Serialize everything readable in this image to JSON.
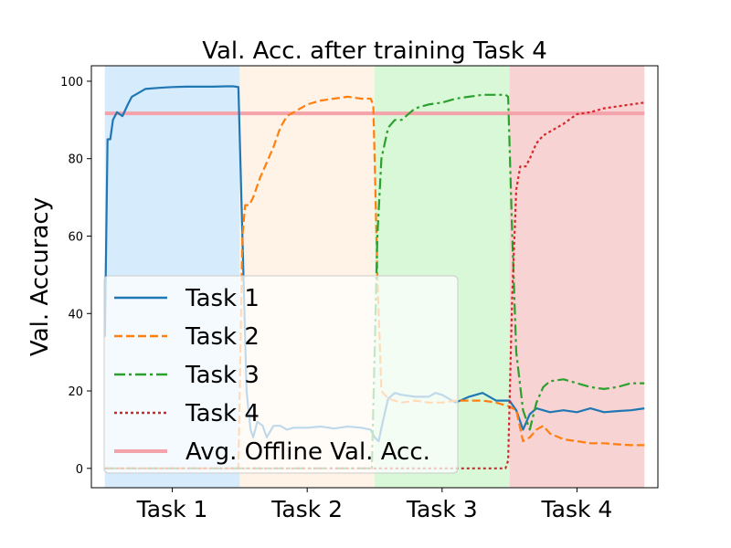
{
  "chart_data": {
    "type": "line",
    "title": "Val. Acc. after training Task 4",
    "xlabel": "",
    "ylabel": "Val. Accuracy",
    "ylim": [
      -5,
      104
    ],
    "xlim": [
      -0.1,
      4.1
    ],
    "yticks": [
      0,
      20,
      40,
      60,
      80,
      100
    ],
    "grid": false,
    "legend_position": "lower-left",
    "phases": [
      {
        "label": "Task 1",
        "start": 0,
        "end": 1,
        "color": "#d6ebfb"
      },
      {
        "label": "Task 2",
        "start": 1,
        "end": 2,
        "color": "#fef3e6"
      },
      {
        "label": "Task 3",
        "start": 2,
        "end": 3,
        "color": "#d8f8d8"
      },
      {
        "label": "Task 4",
        "start": 3,
        "end": 4,
        "color": "#f7d3d3"
      }
    ],
    "reference_line": {
      "name": "Avg. Offline Val. Acc.",
      "value": 91.7,
      "color": "#f4a3ab"
    },
    "series": [
      {
        "name": "Task 1",
        "color": "#1f77b4",
        "dash": "solid",
        "x": [
          0,
          0.02,
          0.04,
          0.06,
          0.09,
          0.13,
          0.17,
          0.2,
          0.25,
          0.3,
          0.4,
          0.5,
          0.6,
          0.7,
          0.8,
          0.9,
          0.95,
          0.99,
          1.02,
          1.05,
          1.08,
          1.1,
          1.13,
          1.17,
          1.2,
          1.25,
          1.3,
          1.35,
          1.4,
          1.5,
          1.6,
          1.7,
          1.8,
          1.9,
          1.97,
          2.0,
          2.03,
          2.06,
          2.1,
          2.15,
          2.2,
          2.3,
          2.4,
          2.45,
          2.5,
          2.6,
          2.7,
          2.8,
          2.9,
          3.0,
          3.05,
          3.1,
          3.15,
          3.2,
          3.3,
          3.4,
          3.5,
          3.6,
          3.7,
          3.8,
          3.9,
          4.0
        ],
        "y": [
          34,
          85,
          85,
          90,
          92,
          91,
          94,
          96,
          97,
          98,
          98.3,
          98.5,
          98.6,
          98.6,
          98.6,
          98.7,
          98.7,
          98.5,
          60,
          20,
          10,
          8,
          12,
          11,
          8,
          11,
          11,
          10,
          10.5,
          10.5,
          10.8,
          10.3,
          10.8,
          10.5,
          10,
          8,
          7,
          12,
          18,
          19.5,
          19,
          18.5,
          18.5,
          19.5,
          19,
          17,
          18.5,
          19.5,
          17.5,
          17.5,
          15,
          10,
          14,
          15.5,
          14.5,
          15,
          14.5,
          15.5,
          14.5,
          14.8,
          15,
          15.5
        ]
      },
      {
        "name": "Task 2",
        "color": "#ff7f0e",
        "dash": "dashed",
        "x": [
          0,
          0.5,
          0.97,
          0.99,
          1.02,
          1.04,
          1.07,
          1.1,
          1.15,
          1.2,
          1.25,
          1.3,
          1.35,
          1.4,
          1.5,
          1.6,
          1.7,
          1.8,
          1.9,
          1.97,
          1.99,
          2.0,
          2.02,
          2.05,
          2.1,
          2.2,
          2.3,
          2.4,
          2.5,
          2.6,
          2.7,
          2.8,
          2.9,
          3.0,
          3.05,
          3.1,
          3.15,
          3.2,
          3.25,
          3.3,
          3.4,
          3.5,
          3.6,
          3.7,
          3.8,
          3.9,
          4.0
        ],
        "y": [
          0,
          0,
          0,
          0,
          60,
          68,
          68,
          70,
          75,
          79,
          83,
          88,
          91,
          92,
          94,
          95,
          95.5,
          96,
          95.5,
          95.5,
          94,
          80,
          50,
          20,
          18,
          17,
          17.5,
          17,
          17,
          17.5,
          17.5,
          17.5,
          17,
          16,
          15,
          7,
          8,
          10,
          11,
          9,
          7.5,
          7,
          6.5,
          6.5,
          6.2,
          6,
          6
        ]
      },
      {
        "name": "Task 3",
        "color": "#2ca02c",
        "dash": "dashdot",
        "x": [
          0,
          1,
          1.98,
          2.0,
          2.02,
          2.05,
          2.1,
          2.15,
          2.2,
          2.3,
          2.4,
          2.5,
          2.6,
          2.7,
          2.8,
          2.9,
          2.97,
          2.99,
          3.02,
          3.05,
          3.1,
          3.15,
          3.2,
          3.25,
          3.3,
          3.4,
          3.5,
          3.6,
          3.7,
          3.8,
          3.9,
          4.0
        ],
        "y": [
          0,
          0,
          0,
          30,
          60,
          80,
          88,
          90,
          90,
          93,
          94,
          94.5,
          95.5,
          96,
          96.5,
          96.5,
          96.5,
          96,
          60,
          30,
          15,
          10,
          17,
          21,
          22.5,
          23,
          22,
          21,
          20.5,
          21,
          22,
          22
        ]
      },
      {
        "name": "Task 4",
        "color": "#d62728",
        "dash": "dotted",
        "x": [
          0,
          1,
          2,
          2.97,
          2.99,
          3.02,
          3.05,
          3.08,
          3.12,
          3.15,
          3.2,
          3.25,
          3.3,
          3.4,
          3.5,
          3.6,
          3.7,
          3.8,
          3.9,
          4.0
        ],
        "y": [
          0,
          0,
          0,
          0,
          2,
          45,
          72,
          78,
          78,
          80,
          84,
          86,
          87,
          89,
          91.5,
          92,
          93,
          93.5,
          94,
          94.5
        ]
      }
    ]
  }
}
